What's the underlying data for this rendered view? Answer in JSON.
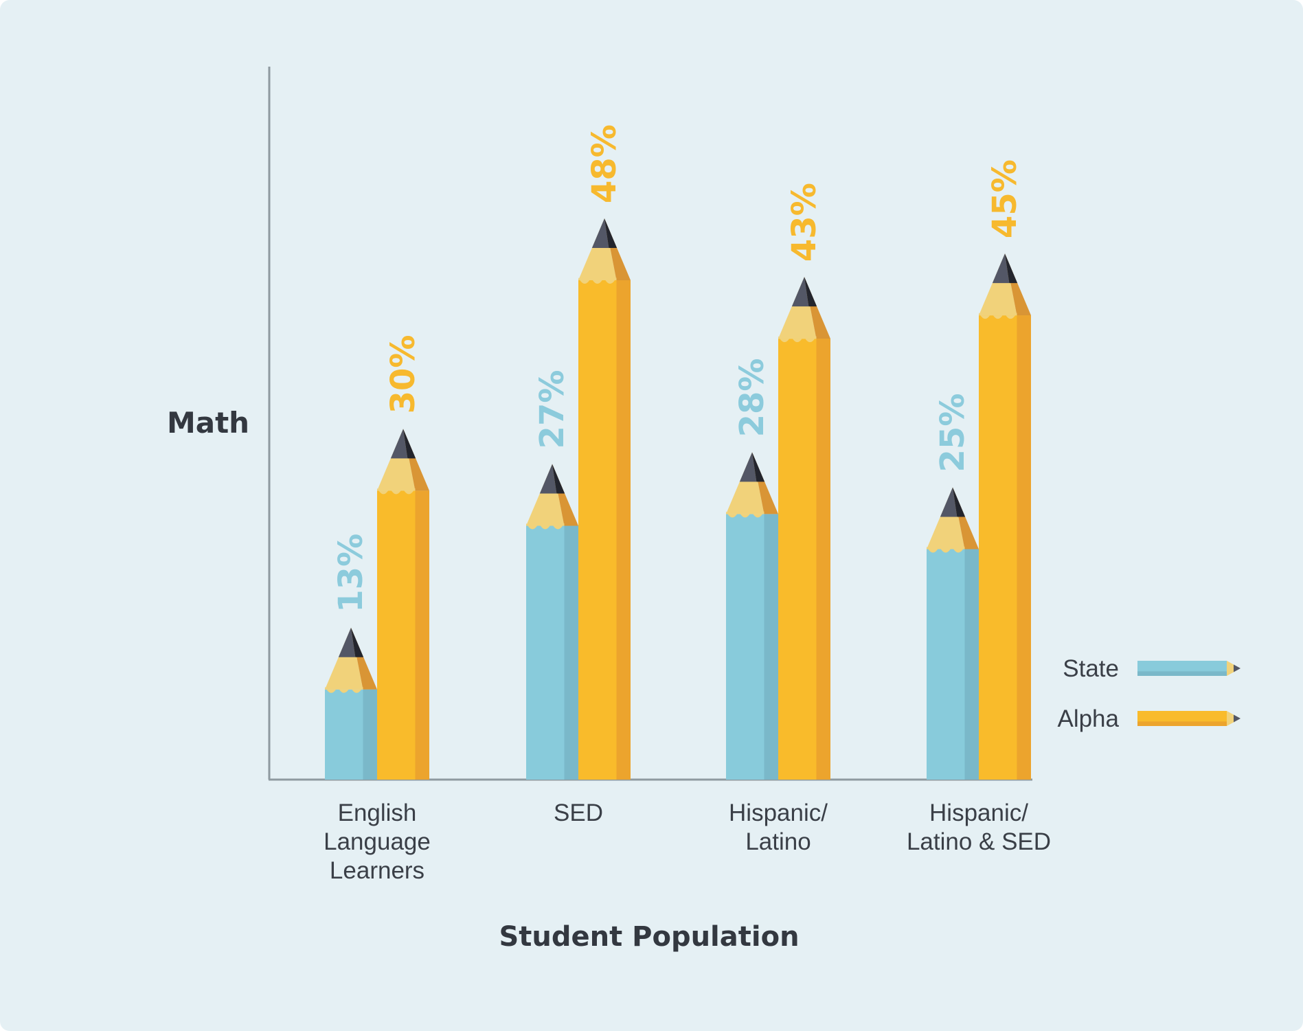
{
  "chart_data": {
    "type": "bar",
    "title": "",
    "ylabel": "Math",
    "xlabel": "Student Population",
    "ylim": [
      0,
      48
    ],
    "categories": [
      [
        "English",
        "Language",
        "Learners"
      ],
      [
        "SED"
      ],
      [
        "Hispanic/",
        "Latino"
      ],
      [
        "Hispanic/",
        "Latino & SED"
      ]
    ],
    "series": [
      {
        "name": "State",
        "values": [
          13,
          27,
          28,
          25
        ],
        "labels": [
          "13%",
          "27%",
          "28%",
          "25%"
        ]
      },
      {
        "name": "Alpha",
        "values": [
          30,
          48,
          43,
          45
        ],
        "labels": [
          "30%",
          "48%",
          "43%",
          "45%"
        ]
      }
    ],
    "legend_position": "right",
    "grid": false,
    "colors": {
      "background": "#e5f0f4",
      "axis": "#8f9aa0",
      "text": "#333840",
      "series": [
        {
          "body": "#88cbdb",
          "shade": "#7ab8c9",
          "wood": "#f1d27a",
          "wood_shade": "#d99535",
          "lead": "#535766"
        },
        {
          "body": "#f9bb2b",
          "shade": "#eca42d",
          "wood": "#f1d27a",
          "wood_shade": "#d99535",
          "lead": "#535766"
        }
      ],
      "label_colors": [
        "#8ccbdc",
        "#f7b92e"
      ]
    }
  }
}
